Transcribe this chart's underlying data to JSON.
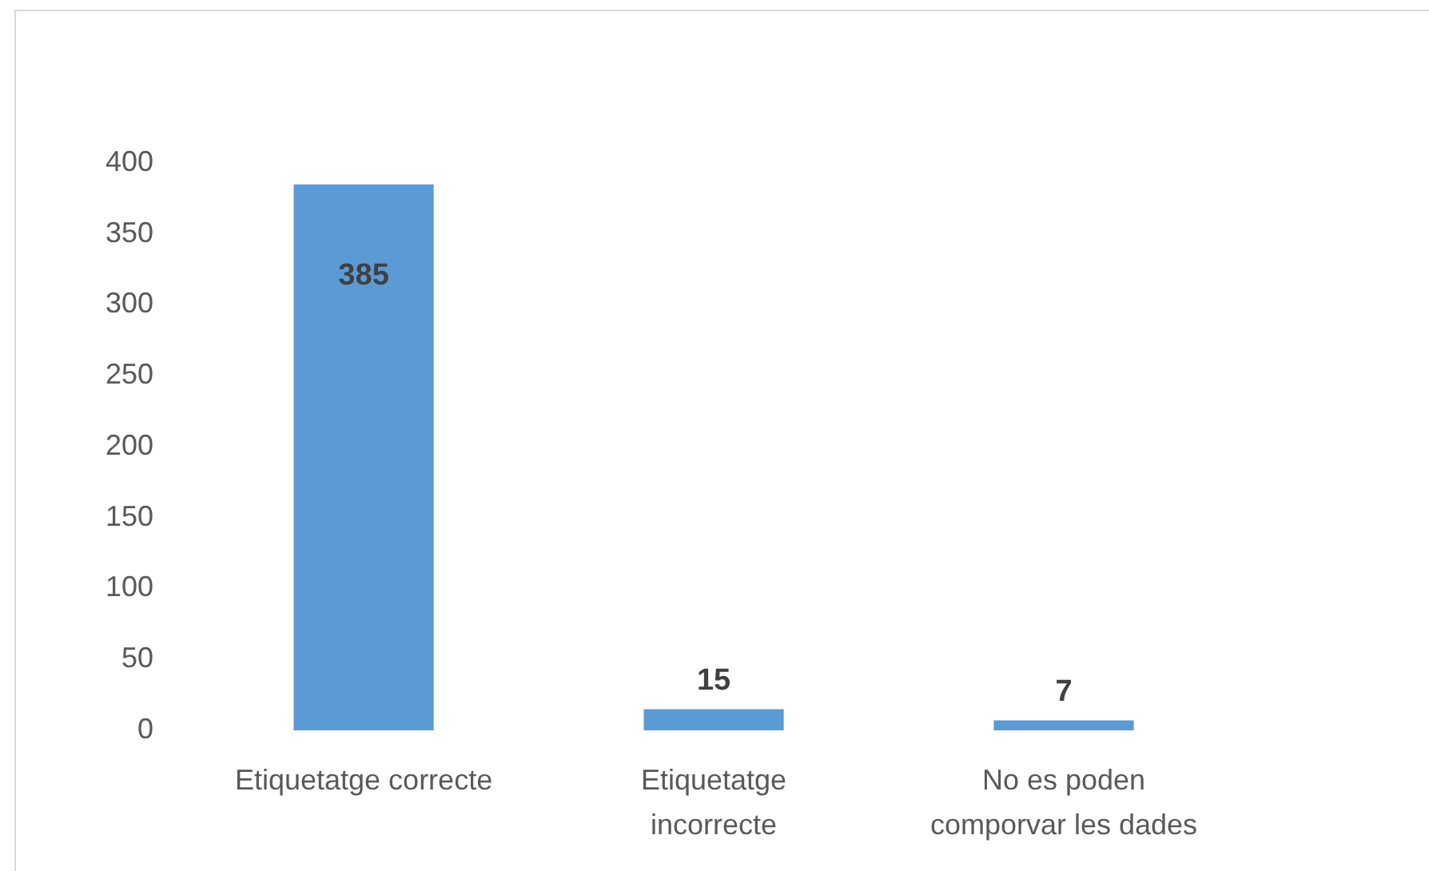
{
  "chart_data": {
    "type": "bar",
    "categories": [
      "Etiquetatge correcte",
      "Etiquetatge incorrecte",
      "No es poden comporvar les dades"
    ],
    "values": [
      385,
      15,
      7
    ],
    "color": "#5b9bd5",
    "ylim": [
      0,
      400
    ],
    "yticks": [
      0,
      50,
      100,
      150,
      200,
      250,
      300,
      350,
      400
    ],
    "grid": false,
    "legend": false,
    "data_labels": true
  }
}
